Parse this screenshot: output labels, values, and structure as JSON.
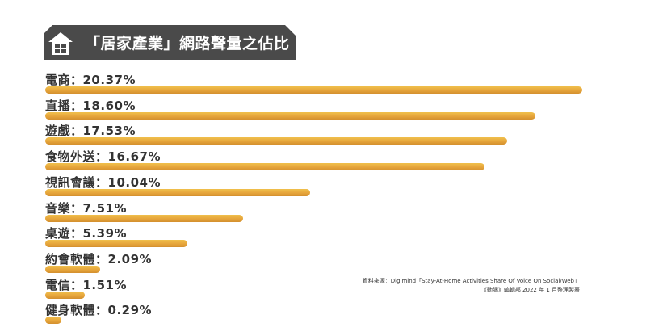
{
  "header": {
    "title": "「居家產業」網路聲量之佔比",
    "icon": "house-icon",
    "tab_color": "#4a4a4a"
  },
  "source": {
    "line1": "資料來源：Digimind「Stay-At-Home Activities Share Of Voice On Social/Web」",
    "line2": "《動腦》編輯部 2022 年 1 月整理製表"
  },
  "bar_color": "#e6a53b",
  "chart_data": {
    "type": "bar",
    "orientation": "horizontal",
    "categories": [
      "電商",
      "直播",
      "遊戲",
      "食物外送",
      "視訊會議",
      "音樂",
      "桌遊",
      "約會軟體",
      "電信",
      "健身軟體"
    ],
    "values": [
      20.37,
      18.6,
      17.53,
      16.67,
      10.04,
      7.51,
      5.39,
      2.09,
      1.51,
      0.29
    ],
    "labels": [
      "電商：20.37%",
      "直播：18.60%",
      "遊戲：17.53%",
      "食物外送：16.67%",
      "視訊會議：10.04%",
      "音樂：7.51%",
      "桌遊：5.39%",
      "約會軟體：2.09%",
      "電信：1.51%",
      "健身軟體：0.29%"
    ],
    "unit": "%",
    "xlim": [
      0,
      20.37
    ],
    "grid": false,
    "legend": "none"
  }
}
